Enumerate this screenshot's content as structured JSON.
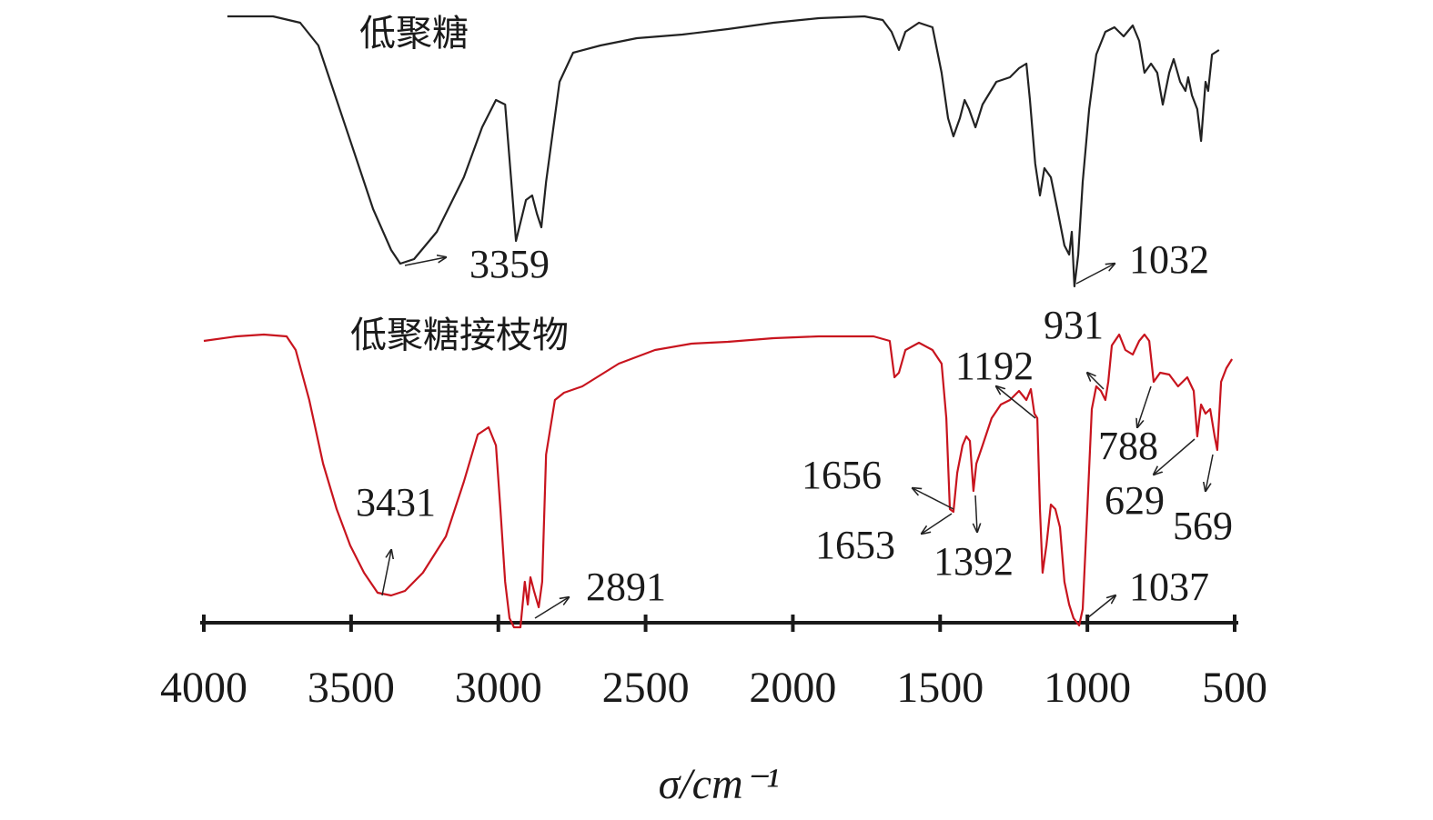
{
  "chart_data": {
    "type": "line",
    "xlabel": "σ/cm⁻¹",
    "xlim": [
      4000,
      500
    ],
    "xticks": [
      4000,
      3500,
      3000,
      2500,
      2000,
      1500,
      1000,
      500
    ],
    "ylim": [
      -10,
      670
    ],
    "series": [
      {
        "name": "低聚糖",
        "color": "#222222",
        "x": [
          3920,
          3765,
          3673,
          3611,
          3549,
          3487,
          3425,
          3364,
          3333,
          3286,
          3209,
          3117,
          3055,
          3008,
          2977,
          2956,
          2940,
          2925,
          2906,
          2885,
          2869,
          2854,
          2838,
          2792,
          2746,
          2653,
          2530,
          2375,
          2221,
          2066,
          1912,
          1757,
          1695,
          1665,
          1640,
          1618,
          1572,
          1526,
          1495,
          1473,
          1455,
          1433,
          1417,
          1402,
          1380,
          1356,
          1309,
          1263,
          1232,
          1207,
          1195,
          1177,
          1161,
          1146,
          1124,
          1102,
          1078,
          1062,
          1053,
          1044,
          1031,
          1016,
          994,
          970,
          939,
          908,
          877,
          846,
          824,
          806,
          784,
          763,
          744,
          722,
          707,
          685,
          667,
          658,
          645,
          627,
          614,
          599,
          590,
          577,
          553
        ],
        "values": [
          667,
          667,
          660,
          635,
          575,
          515,
          455,
          410,
          395,
          400,
          430,
          490,
          545,
          575,
          570,
          485,
          420,
          440,
          465,
          470,
          450,
          435,
          485,
          595,
          627,
          635,
          643,
          647,
          653,
          660,
          665,
          667,
          663,
          650,
          630,
          650,
          660,
          655,
          605,
          555,
          535,
          555,
          575,
          565,
          545,
          570,
          595,
          600,
          610,
          615,
          575,
          505,
          470,
          500,
          490,
          455,
          415,
          405,
          430,
          370,
          405,
          485,
          565,
          625,
          650,
          655,
          645,
          657,
          640,
          605,
          615,
          605,
          570,
          605,
          620,
          595,
          585,
          600,
          580,
          565,
          530,
          595,
          585,
          625,
          630
        ],
        "peaks": [
          3359,
          1032
        ]
      },
      {
        "name": "低聚糖接枝物",
        "color": "#c8141e",
        "x": [
          4000,
          3889,
          3796,
          3719,
          3688,
          3642,
          3595,
          3549,
          3503,
          3456,
          3410,
          3364,
          3317,
          3256,
          3178,
          3117,
          3070,
          3033,
          3008,
          2993,
          2977,
          2962,
          2947,
          2925,
          2910,
          2900,
          2891,
          2879,
          2863,
          2851,
          2838,
          2808,
          2777,
          2715,
          2591,
          2468,
          2344,
          2221,
          2066,
          1912,
          1726,
          1671,
          1655,
          1640,
          1618,
          1572,
          1526,
          1495,
          1479,
          1467,
          1455,
          1442,
          1424,
          1411,
          1399,
          1387,
          1377,
          1356,
          1325,
          1294,
          1263,
          1232,
          1207,
          1192,
          1180,
          1170,
          1161,
          1152,
          1139,
          1124,
          1109,
          1093,
          1078,
          1062,
          1047,
          1028,
          1016,
          1000,
          985,
          970,
          954,
          939,
          929,
          917,
          892,
          871,
          846,
          824,
          806,
          790,
          775,
          753,
          722,
          692,
          661,
          639,
          627,
          614,
          599,
          583,
          568,
          559,
          546,
          528,
          509
        ],
        "values": [
          310,
          315,
          317,
          315,
          300,
          245,
          175,
          125,
          85,
          55,
          33,
          30,
          35,
          55,
          95,
          155,
          207,
          215,
          195,
          125,
          45,
          5,
          -5,
          -5,
          45,
          20,
          50,
          35,
          17,
          45,
          185,
          245,
          253,
          260,
          285,
          300,
          307,
          309,
          313,
          315,
          315,
          310,
          270,
          275,
          300,
          308,
          300,
          285,
          225,
          125,
          122,
          165,
          195,
          205,
          200,
          145,
          175,
          195,
          225,
          240,
          245,
          255,
          245,
          257,
          230,
          225,
          125,
          55,
          85,
          130,
          125,
          105,
          45,
          20,
          5,
          -3,
          15,
          125,
          235,
          260,
          255,
          245,
          265,
          305,
          317,
          300,
          295,
          310,
          317,
          310,
          265,
          275,
          273,
          260,
          270,
          255,
          205,
          240,
          230,
          235,
          205,
          190,
          265,
          280,
          290
        ],
        "peaks": [
          3431,
          2891,
          1656,
          1653,
          1392,
          1192,
          931,
          788,
          629,
          569,
          1037
        ]
      }
    ]
  }
}
